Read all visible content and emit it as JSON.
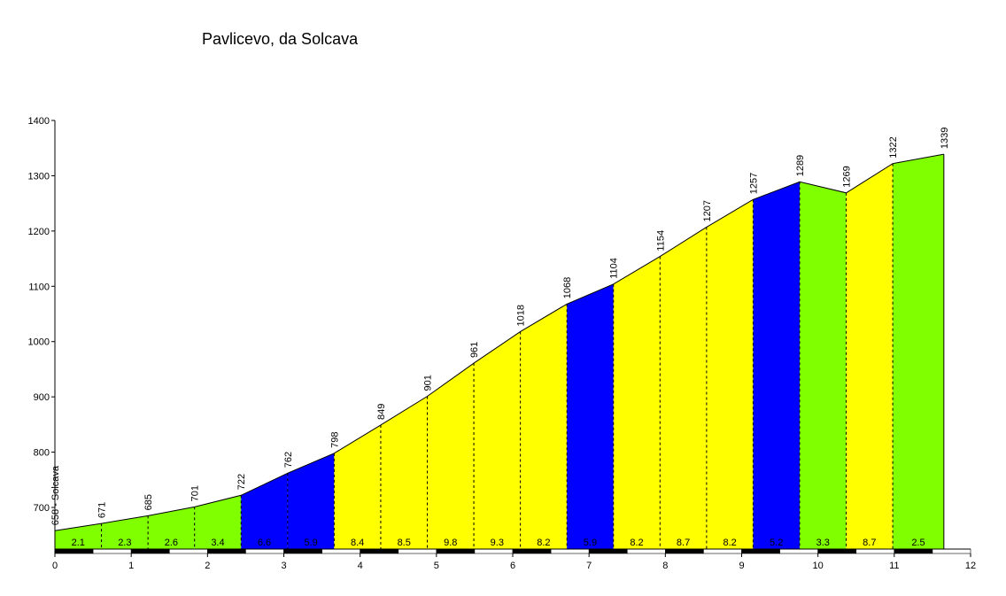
{
  "chart_data": {
    "type": "area",
    "title": "Pavlicevo, da Solcava",
    "xlabel": "",
    "ylabel": "",
    "xlim": [
      0,
      12
    ],
    "ylim": [
      620,
      1400
    ],
    "x_ticks": [
      "0",
      "1",
      "2",
      "3",
      "4",
      "5",
      "6",
      "7",
      "8",
      "9",
      "10",
      "11",
      "12"
    ],
    "y_ticks": [
      "700",
      "800",
      "900",
      "1000",
      "1100",
      "1200",
      "1300",
      "1400"
    ],
    "start_label": "658 - Solcava",
    "points": [
      {
        "x": 0.0,
        "elev": 658,
        "label": "658 - Solcava"
      },
      {
        "x": 0.61,
        "elev": 671,
        "label": "671"
      },
      {
        "x": 1.22,
        "elev": 685,
        "label": "685"
      },
      {
        "x": 1.83,
        "elev": 701,
        "label": "701"
      },
      {
        "x": 2.44,
        "elev": 722,
        "label": "722"
      },
      {
        "x": 3.05,
        "elev": 762,
        "label": "762"
      },
      {
        "x": 3.66,
        "elev": 798,
        "label": "798"
      },
      {
        "x": 4.27,
        "elev": 849,
        "label": "849"
      },
      {
        "x": 4.88,
        "elev": 901,
        "label": "901"
      },
      {
        "x": 5.49,
        "elev": 961,
        "label": "961"
      },
      {
        "x": 6.1,
        "elev": 1018,
        "label": "1018"
      },
      {
        "x": 6.71,
        "elev": 1068,
        "label": "1068"
      },
      {
        "x": 7.32,
        "elev": 1104,
        "label": "1104"
      },
      {
        "x": 7.93,
        "elev": 1154,
        "label": "1154"
      },
      {
        "x": 8.54,
        "elev": 1207,
        "label": "1207"
      },
      {
        "x": 9.15,
        "elev": 1257,
        "label": "1257"
      },
      {
        "x": 9.76,
        "elev": 1289,
        "label": "1289"
      },
      {
        "x": 10.37,
        "elev": 1269,
        "label": "1269"
      },
      {
        "x": 10.98,
        "elev": 1322,
        "label": "1322"
      },
      {
        "x": 11.65,
        "elev": 1339,
        "label": "1339"
      }
    ],
    "segments": [
      {
        "gradient": "2.1",
        "color": "#80ff00"
      },
      {
        "gradient": "2.3",
        "color": "#80ff00"
      },
      {
        "gradient": "2.6",
        "color": "#80ff00"
      },
      {
        "gradient": "3.4",
        "color": "#80ff00"
      },
      {
        "gradient": "6.6",
        "color": "#0000ff"
      },
      {
        "gradient": "5.9",
        "color": "#0000ff"
      },
      {
        "gradient": "8.4",
        "color": "#ffff00"
      },
      {
        "gradient": "8.5",
        "color": "#ffff00"
      },
      {
        "gradient": "9.8",
        "color": "#ffff00"
      },
      {
        "gradient": "9.3",
        "color": "#ffff00"
      },
      {
        "gradient": "8.2",
        "color": "#ffff00"
      },
      {
        "gradient": "5.9",
        "color": "#0000ff"
      },
      {
        "gradient": "8.2",
        "color": "#ffff00"
      },
      {
        "gradient": "8.7",
        "color": "#ffff00"
      },
      {
        "gradient": "8.2",
        "color": "#ffff00"
      },
      {
        "gradient": "5.2",
        "color": "#0000ff"
      },
      {
        "gradient": "3.3",
        "color": "#80ff00"
      },
      {
        "gradient": "8.7",
        "color": "#ffff00"
      },
      {
        "gradient": "2.5",
        "color": "#80ff00"
      }
    ],
    "grid": false,
    "legend": "none"
  }
}
